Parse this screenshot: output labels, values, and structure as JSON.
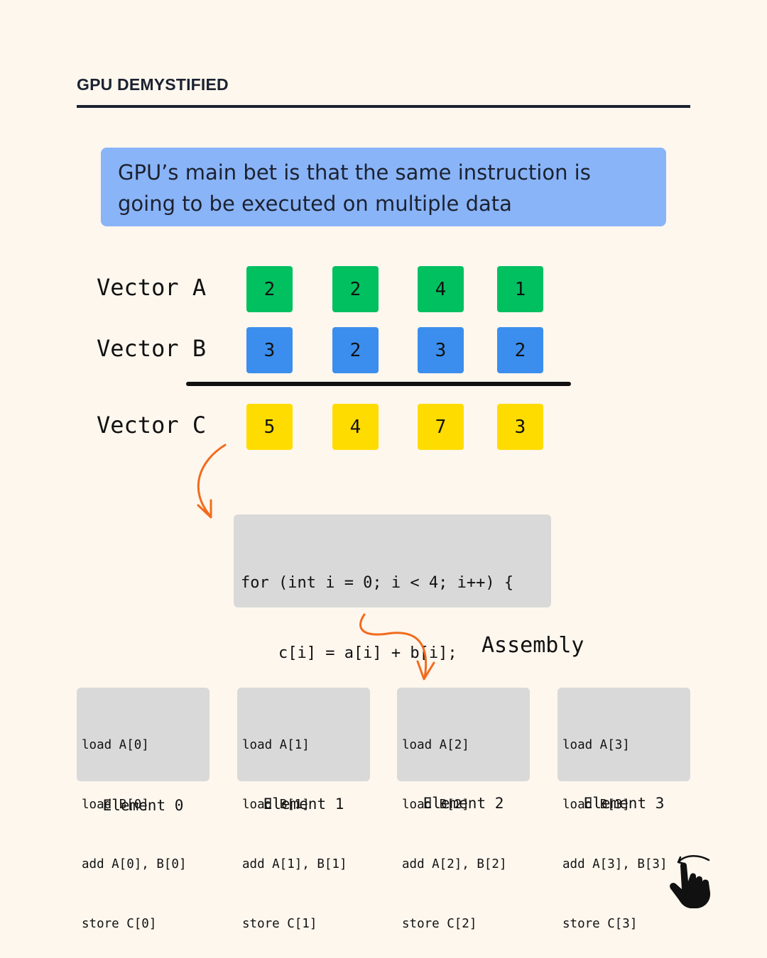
{
  "header": {
    "title": "GPU DEMYSTIFIED"
  },
  "callout": {
    "lines": [
      "GPU’s main bet is that the same instruction is",
      "going to be executed on multiple data"
    ]
  },
  "vectors": [
    {
      "label": "Vector A",
      "values": [
        "2",
        "2",
        "4",
        "1"
      ],
      "color": "#00c060"
    },
    {
      "label": "Vector B",
      "values": [
        "3",
        "2",
        "3",
        "2"
      ],
      "color": "#3b8eed"
    },
    {
      "label": "Vector C",
      "values": [
        "5",
        "4",
        "7",
        "3"
      ],
      "color": "#ffdc00"
    }
  ],
  "code": {
    "lines": [
      "for (int i = 0; i < 4; i++) {",
      "    c[i] = a[i] + b[i];",
      "}"
    ]
  },
  "assembly_label": "Assembly",
  "assembly": [
    {
      "lines": [
        "load A[0]",
        "load B[0]",
        "add A[0], B[0]",
        "store C[0]"
      ],
      "label": "Element 0"
    },
    {
      "lines": [
        "load A[1]",
        "load B[1]",
        "add A[1], B[1]",
        "store C[1]"
      ],
      "label": "Element 1"
    },
    {
      "lines": [
        "load A[2]",
        "load B[2]",
        "add A[2], B[2]",
        "store C[2]"
      ],
      "label": "Element 2"
    },
    {
      "lines": [
        "load A[3]",
        "load B[3]",
        "add A[3], B[3]",
        "store C[3]"
      ],
      "label": "Element 3"
    }
  ],
  "icons": {
    "arrow": "curved-arrow-icon",
    "swipe": "swipe-hand-icon"
  },
  "colors": {
    "background": "#fef7ee",
    "callout": "#8ab4f8",
    "arrow": "#f26b1d",
    "code_box": "#d9d9d9"
  }
}
